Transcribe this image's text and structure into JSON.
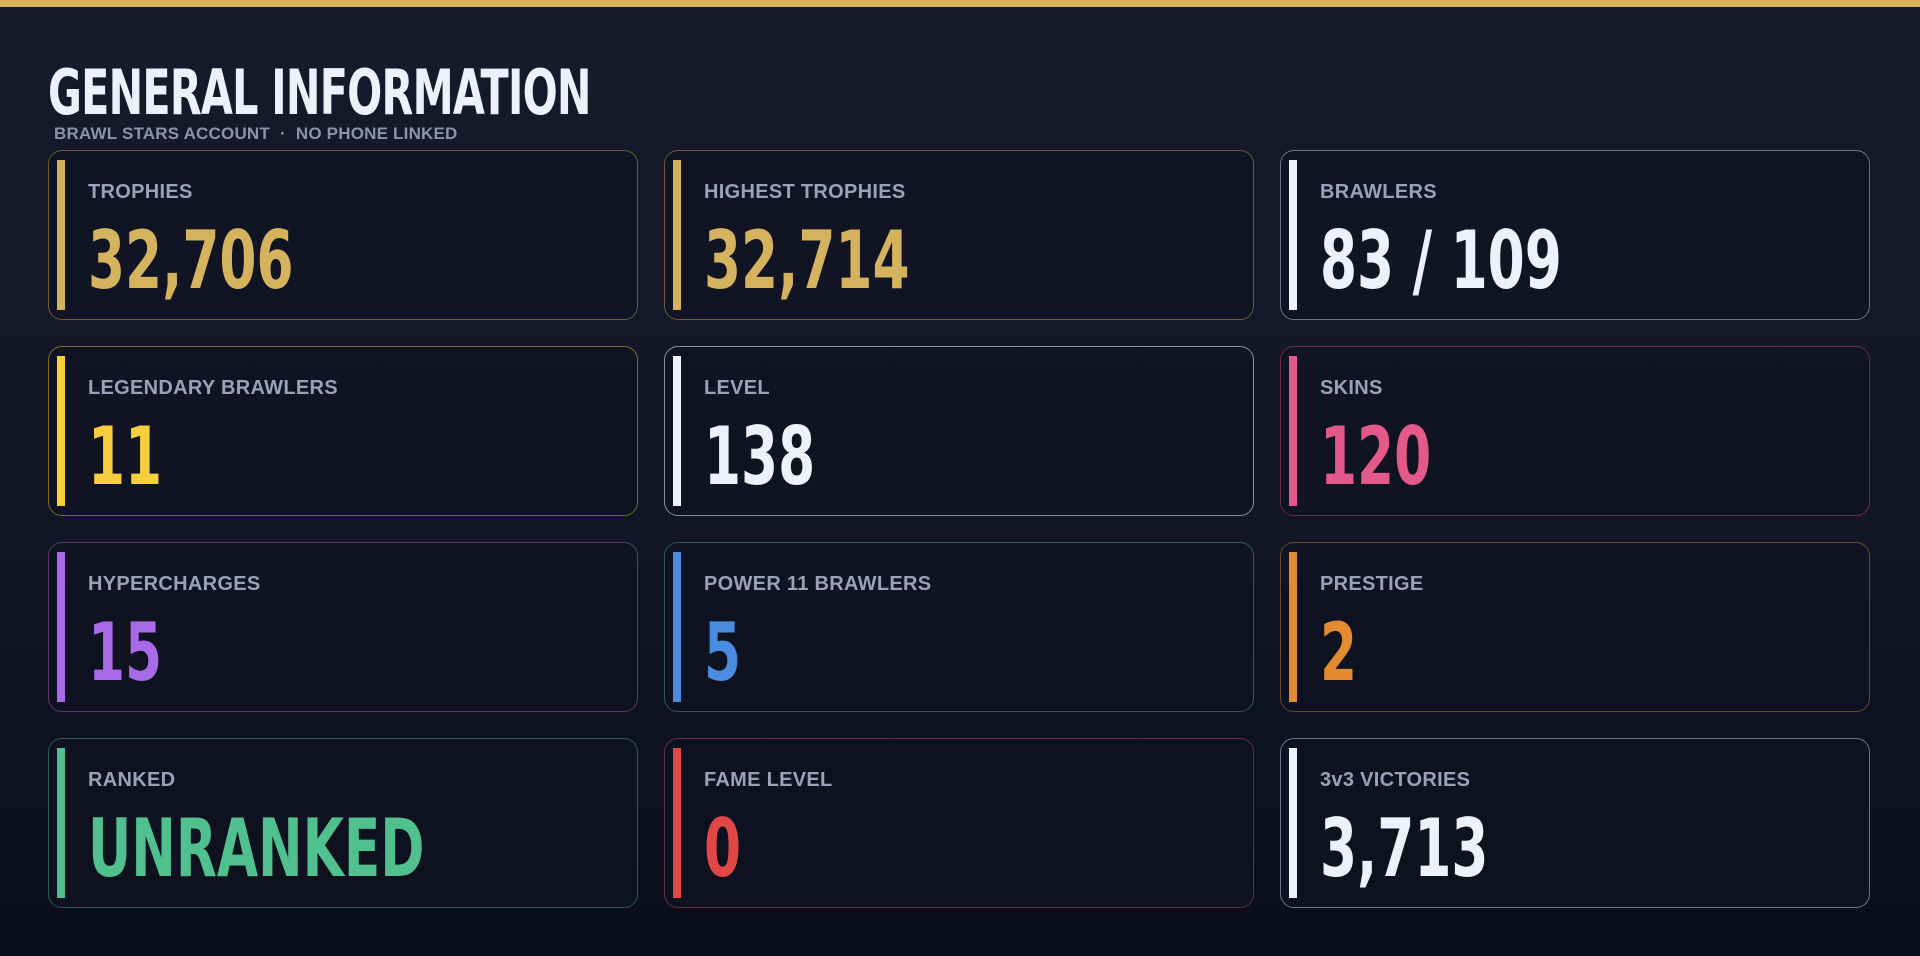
{
  "header": {
    "title": "GENERAL INFORMATION",
    "subtitle_left": "BRAWL STARS ACCOUNT",
    "subtitle_separator": "·",
    "subtitle_right": "NO PHONE LINKED"
  },
  "colors": {
    "top_bar": "#d4b25e",
    "background": "#121626",
    "label": "#9aa1b8"
  },
  "stats": [
    {
      "label": "TROPHIES",
      "value": "32,706",
      "accent": "#d4b25e",
      "border": "#6e5c34",
      "value_color": "#d4b25e"
    },
    {
      "label": "HIGHEST TROPHIES",
      "value": "32,714",
      "accent": "#d4b25e",
      "border": "#6e5c34",
      "value_color": "#d4b25e"
    },
    {
      "label": "BRAWLERS",
      "value": "83 / 109",
      "accent": "#eef0fa",
      "border": "#6e7388",
      "value_color": "#eef0fa"
    },
    {
      "label": "LEGENDARY BRAWLERS",
      "value": "11",
      "accent": "#f7cf3c",
      "border": "#7a6a2a",
      "value_color": "#f7cf3c"
    },
    {
      "label": "LEVEL",
      "value": "138",
      "accent": "#eef0fa",
      "border": "#8a8ea0",
      "value_color": "#eef0fa"
    },
    {
      "label": "SKINS",
      "value": "120",
      "accent": "#e4588a",
      "border": "#6a2c47",
      "value_color": "#e4588a"
    },
    {
      "label": "HYPERCHARGES",
      "value": "15",
      "accent": "#a86ae6",
      "border": "#5e3a6a",
      "value_color": "#a86ae6"
    },
    {
      "label": "POWER 11 BRAWLERS",
      "value": "5",
      "accent": "#4a8ce0",
      "border": "#2f5a62",
      "value_color": "#4a8ce0"
    },
    {
      "label": "PRESTIGE",
      "value": "2",
      "accent": "#e48a30",
      "border": "#6a4a2a",
      "value_color": "#e48a30"
    },
    {
      "label": "RANKED",
      "value": "UNRANKED",
      "accent": "#4fc08e",
      "border": "#2f5a56",
      "value_color": "#4fc08e"
    },
    {
      "label": "FAME LEVEL",
      "value": "0",
      "accent": "#e04848",
      "border": "#6a2c44",
      "value_color": "#e04848"
    },
    {
      "label": "3v3 VICTORIES",
      "value": "3,713",
      "accent": "#eef0fa",
      "border": "#6e7388",
      "value_color": "#eef0fa"
    }
  ]
}
